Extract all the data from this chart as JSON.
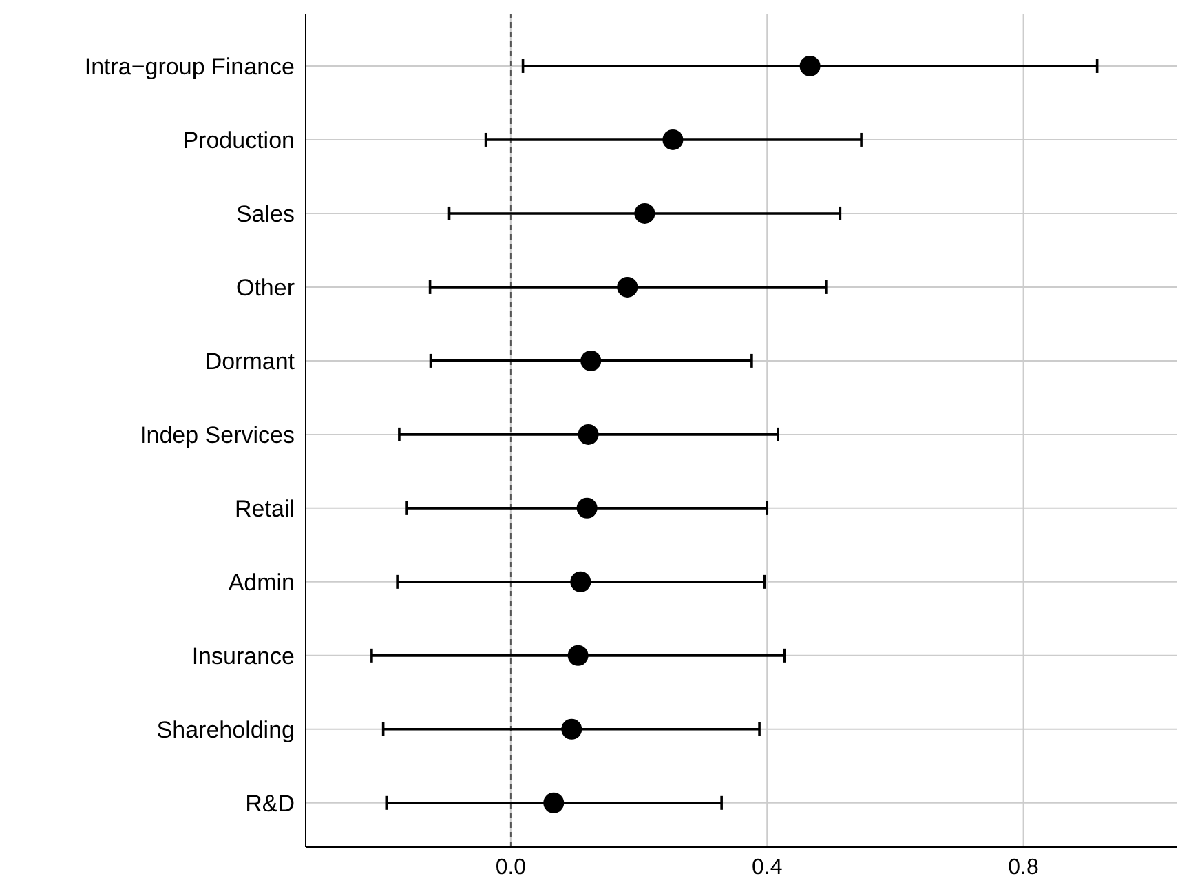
{
  "chart_data": {
    "type": "scatter",
    "categories": [
      "Intra−group Finance",
      "Production",
      "Sales",
      "Other",
      "Dormant",
      "Indep Services",
      "Retail",
      "Admin",
      "Insurance",
      "Shareholding",
      "R&D"
    ],
    "orientation": "horizontal",
    "values": [
      0.467,
      0.253,
      0.209,
      0.182,
      0.125,
      0.121,
      0.119,
      0.109,
      0.105,
      0.095,
      0.067
    ],
    "errors": [
      [
        0.019,
        0.915
      ],
      [
        -0.039,
        0.547
      ],
      [
        -0.096,
        0.514
      ],
      [
        -0.126,
        0.492
      ],
      [
        -0.125,
        0.376
      ],
      [
        -0.174,
        0.417
      ],
      [
        -0.162,
        0.4
      ],
      [
        -0.177,
        0.396
      ],
      [
        -0.217,
        0.427
      ],
      [
        -0.199,
        0.388
      ],
      [
        -0.194,
        0.329
      ]
    ],
    "color": "#000000",
    "marker": "circle",
    "xlim": [
      -0.32,
      1.04
    ],
    "xticks": [
      {
        "value": 0,
        "label": "0.0"
      },
      0.4,
      0.8
    ],
    "grid": true,
    "ref_lines": [
      {
        "axis": "x",
        "value": 0,
        "color": "#555555",
        "line_style": "dashed"
      }
    ]
  }
}
